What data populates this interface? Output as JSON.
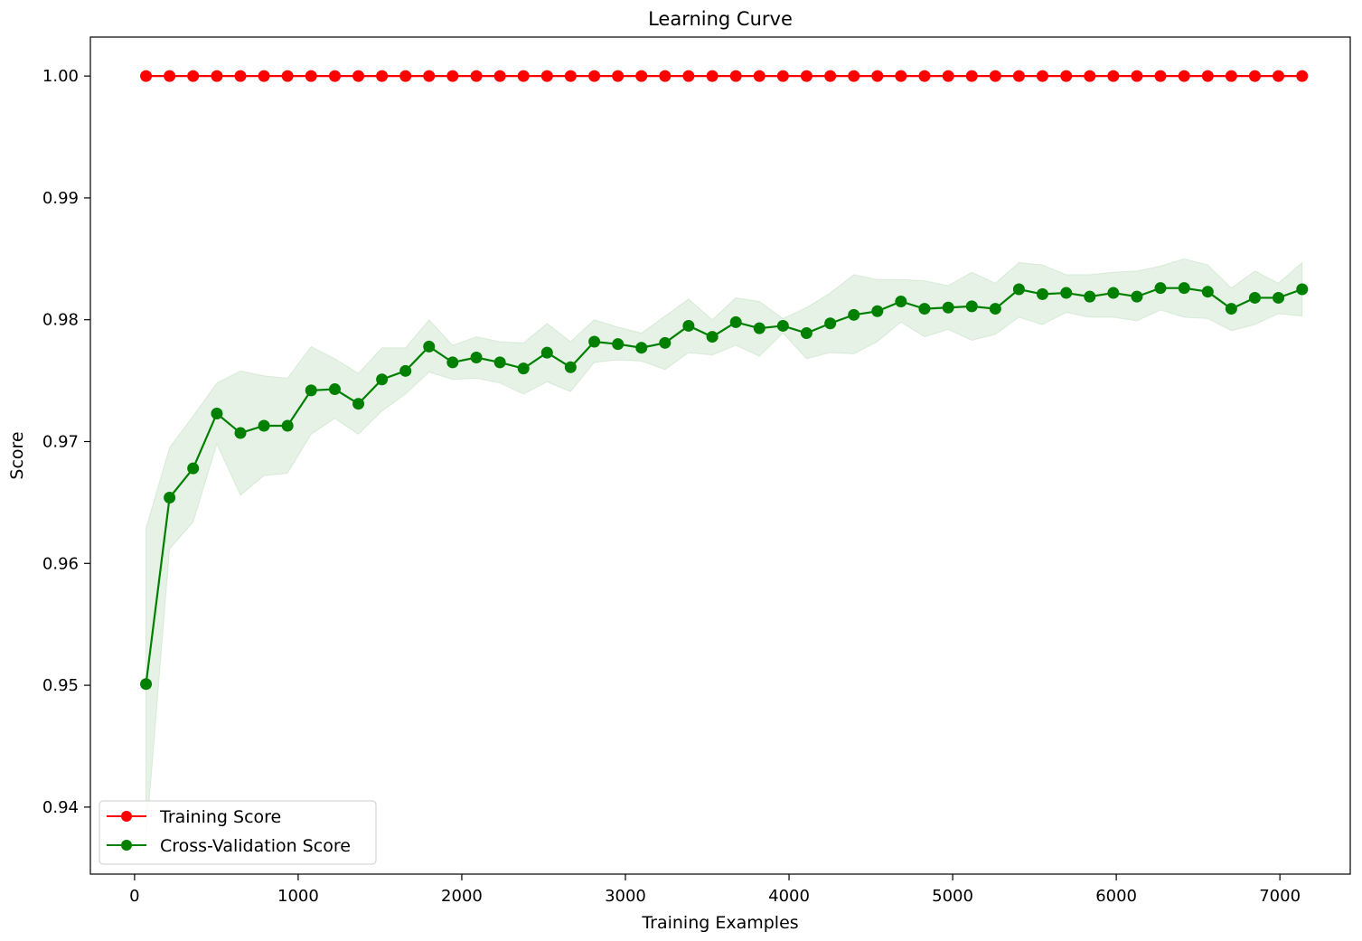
{
  "chart_data": {
    "type": "line",
    "title": "Learning Curve",
    "xlabel": "Training Examples",
    "ylabel": "Score",
    "xlim": [
      -270,
      7430
    ],
    "ylim": [
      0.9345,
      1.0032
    ],
    "xticks": [
      0,
      1000,
      2000,
      3000,
      4000,
      5000,
      6000,
      7000
    ],
    "xtick_labels": [
      "0",
      "1000",
      "2000",
      "3000",
      "4000",
      "5000",
      "6000",
      "7000"
    ],
    "yticks": [
      0.94,
      0.95,
      0.96,
      0.97,
      0.98,
      0.99,
      1.0
    ],
    "ytick_labels": [
      "0.94",
      "0.95",
      "0.96",
      "0.97",
      "0.98",
      "0.99",
      "1.00"
    ],
    "grid": false,
    "legend_position": "lower-left",
    "x": [
      70,
      214,
      358,
      503,
      647,
      791,
      935,
      1079,
      1224,
      1368,
      1512,
      1656,
      1800,
      1944,
      2089,
      2233,
      2377,
      2521,
      2665,
      2810,
      2954,
      3098,
      3242,
      3386,
      3531,
      3675,
      3819,
      3963,
      4107,
      4252,
      4396,
      4540,
      4684,
      4828,
      4973,
      5117,
      5261,
      5405,
      5549,
      5694,
      5838,
      5982,
      6126,
      6270,
      6415,
      6559,
      6703,
      6847,
      6991,
      7136
    ],
    "series": [
      {
        "name": "Training Score",
        "color": "#ff0000",
        "values": [
          1.0,
          1.0,
          1.0,
          1.0,
          1.0,
          1.0,
          1.0,
          1.0,
          1.0,
          1.0,
          1.0,
          1.0,
          1.0,
          1.0,
          1.0,
          1.0,
          1.0,
          1.0,
          1.0,
          1.0,
          1.0,
          1.0,
          1.0,
          1.0,
          1.0,
          1.0,
          1.0,
          1.0,
          1.0,
          1.0,
          1.0,
          1.0,
          1.0,
          1.0,
          1.0,
          1.0,
          1.0,
          1.0,
          1.0,
          1.0,
          1.0,
          1.0,
          1.0,
          1.0,
          1.0,
          1.0,
          1.0,
          1.0,
          1.0,
          1.0
        ]
      },
      {
        "name": "Cross-Validation Score",
        "color": "#008000",
        "band_color": "#008000",
        "values": [
          0.9501,
          0.9654,
          0.9678,
          0.9723,
          0.9707,
          0.9713,
          0.9713,
          0.9742,
          0.9743,
          0.9731,
          0.9751,
          0.9758,
          0.9778,
          0.9765,
          0.9769,
          0.9765,
          0.976,
          0.9773,
          0.9761,
          0.9782,
          0.978,
          0.9777,
          0.9781,
          0.9795,
          0.9786,
          0.9798,
          0.9793,
          0.9795,
          0.9789,
          0.9797,
          0.9804,
          0.9807,
          0.9815,
          0.9809,
          0.981,
          0.9811,
          0.9809,
          0.9825,
          0.9821,
          0.9822,
          0.9819,
          0.9822,
          0.9819,
          0.9826,
          0.9826,
          0.9823,
          0.9809,
          0.9818,
          0.9818,
          0.9825
        ],
        "band_upper": [
          0.9629,
          0.9695,
          0.9721,
          0.9748,
          0.9758,
          0.9754,
          0.9752,
          0.9778,
          0.9768,
          0.9756,
          0.9777,
          0.9777,
          0.98,
          0.9779,
          0.9786,
          0.9782,
          0.9781,
          0.9797,
          0.9782,
          0.98,
          0.9794,
          0.9789,
          0.9803,
          0.9817,
          0.98,
          0.9818,
          0.9815,
          0.9801,
          0.981,
          0.9822,
          0.9837,
          0.9833,
          0.9833,
          0.9832,
          0.9828,
          0.9839,
          0.983,
          0.9847,
          0.9845,
          0.9837,
          0.9837,
          0.9839,
          0.984,
          0.9844,
          0.985,
          0.9845,
          0.9826,
          0.984,
          0.983,
          0.9847
        ],
        "band_lower": [
          0.9373,
          0.9612,
          0.9634,
          0.9698,
          0.9656,
          0.9672,
          0.9674,
          0.9706,
          0.9719,
          0.9706,
          0.9725,
          0.9739,
          0.9757,
          0.9751,
          0.9752,
          0.9748,
          0.9739,
          0.9749,
          0.9741,
          0.9765,
          0.9767,
          0.9766,
          0.9759,
          0.9773,
          0.9771,
          0.9779,
          0.977,
          0.9789,
          0.9768,
          0.9773,
          0.9772,
          0.9782,
          0.9798,
          0.9786,
          0.9792,
          0.9783,
          0.9788,
          0.9802,
          0.9796,
          0.9806,
          0.9802,
          0.9802,
          0.9799,
          0.9808,
          0.9802,
          0.9801,
          0.9791,
          0.9796,
          0.9805,
          0.9803
        ]
      }
    ]
  }
}
